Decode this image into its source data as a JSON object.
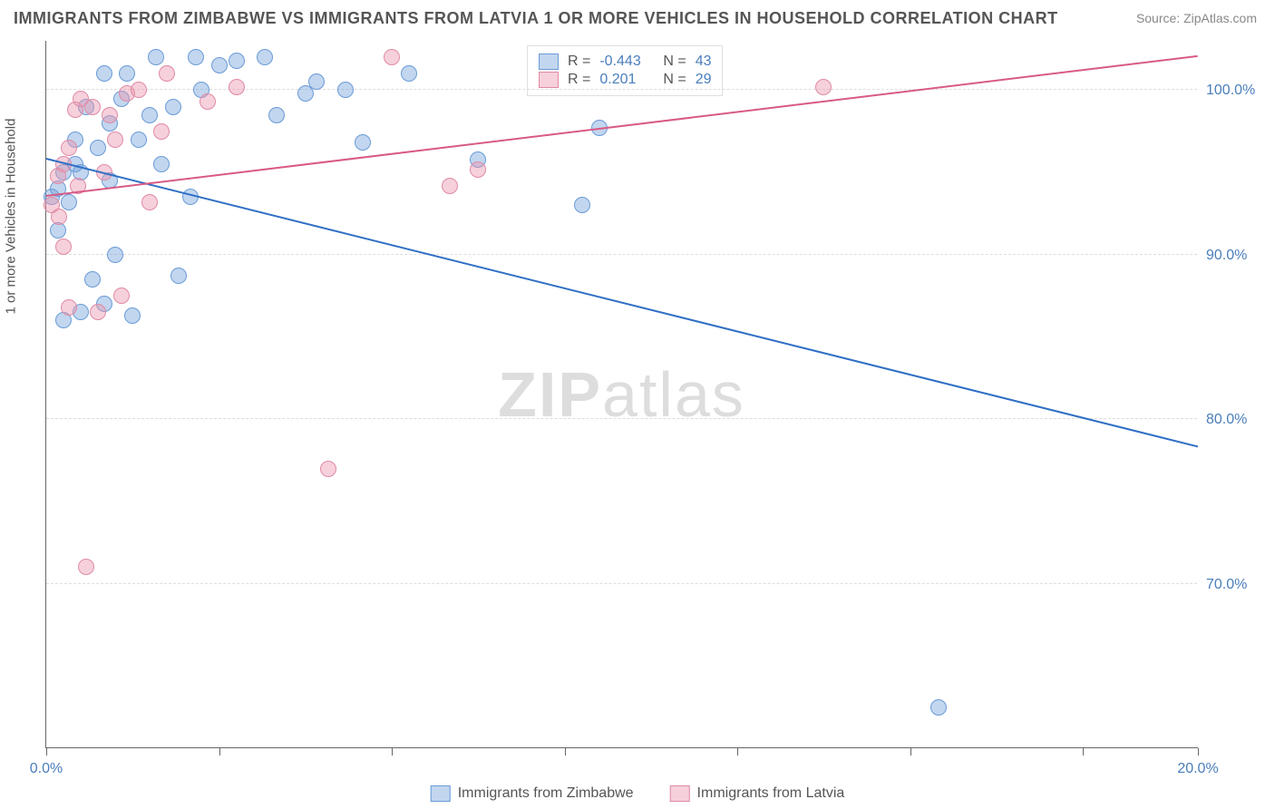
{
  "title": "IMMIGRANTS FROM ZIMBABWE VS IMMIGRANTS FROM LATVIA 1 OR MORE VEHICLES IN HOUSEHOLD CORRELATION CHART",
  "source": "Source: ZipAtlas.com",
  "ylabel": "1 or more Vehicles in Household",
  "watermark_zip": "ZIP",
  "watermark_atlas": "atlas",
  "chart": {
    "type": "scatter",
    "background_color": "#ffffff",
    "grid_color": "#dddddd",
    "axis_color": "#666666",
    "text_color": "#555555",
    "value_color": "#4a7ebb",
    "xlim": [
      0,
      20
    ],
    "ylim": [
      60,
      103
    ],
    "xticks": [
      0,
      3,
      6,
      9,
      12,
      15,
      18,
      20
    ],
    "xtick_labels": [
      "0.0%",
      "",
      "",
      "",
      "",
      "",
      "",
      "20.0%"
    ],
    "yticks": [
      70,
      80,
      90,
      100
    ],
    "ytick_labels": [
      "70.0%",
      "80.0%",
      "90.0%",
      "100.0%"
    ],
    "series": [
      {
        "name": "Immigrants from Zimbabwe",
        "color_fill": "rgba(120,165,220,0.45)",
        "color_stroke": "#6a9bd8",
        "marker_size": 18,
        "R": "-0.443",
        "N": "43",
        "trend": {
          "x1": 0,
          "y1": 95.8,
          "x2": 20,
          "y2": 78.3,
          "color": "#2f6fc4",
          "width": 2
        },
        "points": [
          [
            0.1,
            93.5
          ],
          [
            0.2,
            94.0
          ],
          [
            0.2,
            91.5
          ],
          [
            0.3,
            95.0
          ],
          [
            0.3,
            86.0
          ],
          [
            0.4,
            93.2
          ],
          [
            0.5,
            97.0
          ],
          [
            0.5,
            95.5
          ],
          [
            0.6,
            95.0
          ],
          [
            0.7,
            99.0
          ],
          [
            0.8,
            88.5
          ],
          [
            0.9,
            96.5
          ],
          [
            1.0,
            101.0
          ],
          [
            1.1,
            98.0
          ],
          [
            1.1,
            94.5
          ],
          [
            1.2,
            90.0
          ],
          [
            1.3,
            99.5
          ],
          [
            1.4,
            101.0
          ],
          [
            1.5,
            86.3
          ],
          [
            1.6,
            97.0
          ],
          [
            1.8,
            98.5
          ],
          [
            1.9,
            102.0
          ],
          [
            2.0,
            95.5
          ],
          [
            2.2,
            99.0
          ],
          [
            2.3,
            88.7
          ],
          [
            2.5,
            93.5
          ],
          [
            2.6,
            102.0
          ],
          [
            2.7,
            100.0
          ],
          [
            3.0,
            101.5
          ],
          [
            3.3,
            101.8
          ],
          [
            3.8,
            102.0
          ],
          [
            4.0,
            98.5
          ],
          [
            4.5,
            99.8
          ],
          [
            4.7,
            100.5
          ],
          [
            5.2,
            100.0
          ],
          [
            5.5,
            96.8
          ],
          [
            6.3,
            101.0
          ],
          [
            7.5,
            95.8
          ],
          [
            9.3,
            93.0
          ],
          [
            9.6,
            97.7
          ],
          [
            15.5,
            62.5
          ],
          [
            0.6,
            86.5
          ],
          [
            1.0,
            87.0
          ]
        ]
      },
      {
        "name": "Immigrants from Latvia",
        "color_fill": "rgba(235,150,175,0.45)",
        "color_stroke": "#e08aa5",
        "marker_size": 18,
        "R": "0.201",
        "N": "29",
        "trend": {
          "x1": 0,
          "y1": 93.5,
          "x2": 20,
          "y2": 102.0,
          "color": "#d85a85",
          "width": 2
        },
        "points": [
          [
            0.1,
            93.0
          ],
          [
            0.2,
            94.8
          ],
          [
            0.22,
            92.3
          ],
          [
            0.3,
            95.5
          ],
          [
            0.3,
            90.5
          ],
          [
            0.4,
            96.5
          ],
          [
            0.4,
            86.8
          ],
          [
            0.5,
            98.8
          ],
          [
            0.55,
            94.2
          ],
          [
            0.6,
            99.5
          ],
          [
            0.7,
            71.0
          ],
          [
            0.8,
            99.0
          ],
          [
            0.9,
            86.5
          ],
          [
            1.0,
            95.0
          ],
          [
            1.1,
            98.5
          ],
          [
            1.2,
            97.0
          ],
          [
            1.3,
            87.5
          ],
          [
            1.4,
            99.8
          ],
          [
            1.6,
            100.0
          ],
          [
            1.8,
            93.2
          ],
          [
            2.0,
            97.5
          ],
          [
            2.1,
            101.0
          ],
          [
            2.8,
            99.3
          ],
          [
            3.3,
            100.2
          ],
          [
            4.9,
            77.0
          ],
          [
            6.0,
            102.0
          ],
          [
            7.0,
            94.2
          ],
          [
            7.5,
            95.2
          ],
          [
            13.5,
            100.2
          ]
        ]
      }
    ]
  },
  "legend_bottom": [
    {
      "label": "Immigrants from Zimbabwe",
      "fill": "rgba(120,165,220,0.45)",
      "stroke": "#6a9bd8"
    },
    {
      "label": "Immigrants from Latvia",
      "fill": "rgba(235,150,175,0.45)",
      "stroke": "#e08aa5"
    }
  ],
  "legend_top": [
    {
      "fill": "rgba(120,165,220,0.45)",
      "stroke": "#6a9bd8",
      "R": "-0.443",
      "N": "43"
    },
    {
      "fill": "rgba(235,150,175,0.45)",
      "stroke": "#e08aa5",
      "R": "0.201",
      "N": "29"
    }
  ]
}
